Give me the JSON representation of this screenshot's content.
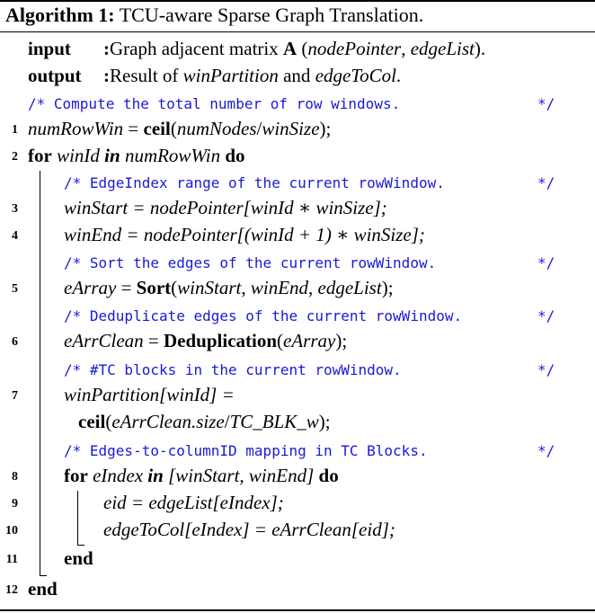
{
  "algorithm": {
    "label": "Algorithm 1:",
    "title": "TCU-aware Sparse Graph Translation."
  },
  "io": {
    "input_kw": "input",
    "input_sep": ":",
    "input_text_a": "Graph adjacent matrix ",
    "input_A": "A",
    "input_text_b": " (",
    "input_np": "nodePointer",
    "input_comma": ", ",
    "input_el": "edgeList",
    "input_end": ").",
    "output_kw": "output",
    "output_sep": ":",
    "output_text_a": "Result of ",
    "output_wp": "winPartition",
    "output_and": " and ",
    "output_etc": "edgeToCol",
    "output_end": "."
  },
  "comments": {
    "c1": "/* Compute the total number of row windows.",
    "c2": "/* EdgeIndex range of the current rowWindow.",
    "c3": "/* Sort the edges of the current rowWindow.",
    "c4": "/* Deduplicate edges of the current rowWindow.",
    "c5": "/* #TC blocks in the current rowWindow.",
    "c6": "/* Edges-to-columnID mapping in TC Blocks.",
    "end": "*/"
  },
  "line_numbers": [
    "1",
    "2",
    "3",
    "4",
    "5",
    "6",
    "7",
    "8",
    "9",
    "10",
    "11",
    "12"
  ],
  "code": {
    "l1_a": "numRowWin",
    "l1_b": " = ",
    "l1_c": "ceil",
    "l1_d": "(",
    "l1_e": "numNodes",
    "l1_f": "/",
    "l1_g": "winSize",
    "l1_h": ");",
    "l2_for": "for",
    "l2_var": " winId ",
    "l2_in": "in",
    "l2_rng": " numRowWin ",
    "l2_do": "do",
    "l3": "winStart = nodePointer[winId ∗ winSize];",
    "l4": "winEnd = nodePointer[(winId + 1) ∗ winSize];",
    "l5_a": "eArray",
    "l5_b": " = ",
    "l5_c": "Sort",
    "l5_d": "(",
    "l5_e": "winStart",
    "l5_f": ", ",
    "l5_g": "winEnd",
    "l5_h": ", ",
    "l5_i": "edgeList",
    "l5_j": ");",
    "l6_a": "eArrClean",
    "l6_b": " = ",
    "l6_c": "Deduplication",
    "l6_d": "(",
    "l6_e": "eArray",
    "l6_f": ");",
    "l7a": "winPartition[winId] =",
    "l7b_a": "ceil",
    "l7b_b": "(",
    "l7b_c": "eArrClean.size",
    "l7b_d": "/",
    "l7b_e": "TC_BLK_w",
    "l7b_f": ");",
    "l8_for": "for",
    "l8_var": " eIndex ",
    "l8_in": "in",
    "l8_rng": " [winStart, winEnd] ",
    "l8_do": "do",
    "l9": "eid = edgeList[eIndex];",
    "l10": "edgeToCol[eIndex] = eArrClean[eid];",
    "l11": "end",
    "l12": "end"
  }
}
